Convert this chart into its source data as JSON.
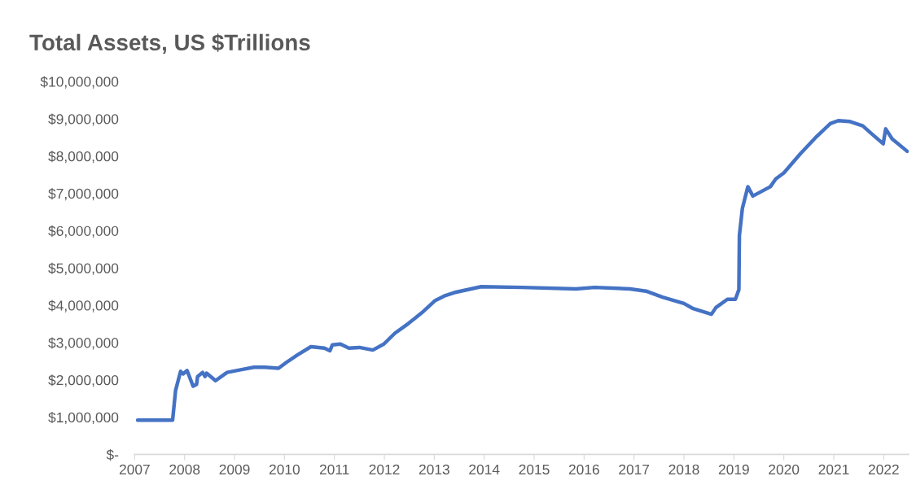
{
  "chart_data": {
    "type": "line",
    "title": "Total Assets, US $Trillions",
    "x": [
      2007.06,
      2007.76,
      2007.82,
      2007.92,
      2007.97,
      2008.05,
      2008.17,
      2008.24,
      2008.26,
      2008.36,
      2008.41,
      2008.44,
      2008.62,
      2008.85,
      2009.12,
      2009.39,
      2009.61,
      2009.88,
      2010.04,
      2010.26,
      2010.53,
      2010.8,
      2010.91,
      2010.96,
      2011.12,
      2011.29,
      2011.5,
      2011.77,
      2011.99,
      2012.21,
      2012.48,
      2012.75,
      2013.02,
      2013.2,
      2013.4,
      2013.94,
      2014.75,
      2015.84,
      2016.21,
      2016.92,
      2017.24,
      2017.57,
      2018.0,
      2018.17,
      2018.55,
      2018.64,
      2018.87,
      2019.03,
      2019.1,
      2019.11,
      2019.17,
      2019.28,
      2019.38,
      2019.73,
      2019.84,
      2020.0,
      2020.33,
      2020.66,
      2020.93,
      2021.09,
      2021.31,
      2021.58,
      2021.74,
      2021.99,
      2022.04,
      2022.17,
      2022.47
    ],
    "series": [
      {
        "color": "#4472c4",
        "values": [
          920000,
          920000,
          1720000,
          2230000,
          2160000,
          2250000,
          1830000,
          1880000,
          2090000,
          2200000,
          2090000,
          2180000,
          1980000,
          2200000,
          2270000,
          2340000,
          2340000,
          2310000,
          2470000,
          2670000,
          2890000,
          2850000,
          2780000,
          2940000,
          2960000,
          2850000,
          2870000,
          2800000,
          2960000,
          3250000,
          3510000,
          3800000,
          4130000,
          4250000,
          4340000,
          4500000,
          4480000,
          4440000,
          4480000,
          4440000,
          4380000,
          4220000,
          4050000,
          3920000,
          3760000,
          3940000,
          4160000,
          4160000,
          4420000,
          5870000,
          6600000,
          7180000,
          6930000,
          7180000,
          7390000,
          7550000,
          8060000,
          8530000,
          8870000,
          8950000,
          8930000,
          8810000,
          8620000,
          8330000,
          8730000,
          8460000,
          8130000
        ]
      }
    ],
    "xlim": [
      2007,
      2022.5
    ],
    "xticks": [
      2007,
      2008,
      2009,
      2010,
      2011,
      2012,
      2013,
      2014,
      2015,
      2016,
      2017,
      2018,
      2019,
      2020,
      2021,
      2022
    ],
    "ylim": [
      0,
      10000000
    ],
    "yticks": [
      {
        "value": 0,
        "label": "$-"
      },
      {
        "value": 1000000,
        "label": "$1,000,000"
      },
      {
        "value": 2000000,
        "label": "$2,000,000"
      },
      {
        "value": 3000000,
        "label": "$3,000,000"
      },
      {
        "value": 4000000,
        "label": "$4,000,000"
      },
      {
        "value": 5000000,
        "label": "$5,000,000"
      },
      {
        "value": 6000000,
        "label": "$6,000,000"
      },
      {
        "value": 7000000,
        "label": "$7,000,000"
      },
      {
        "value": 8000000,
        "label": "$8,000,000"
      },
      {
        "value": 9000000,
        "label": "$9,000,000"
      },
      {
        "value": 10000000,
        "label": "$10,000,000"
      }
    ],
    "grid": false,
    "marker": "none",
    "line_style": "solid"
  }
}
